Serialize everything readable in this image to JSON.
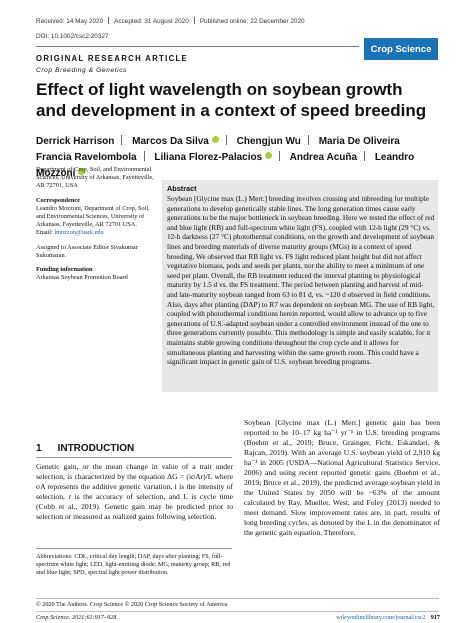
{
  "header": {
    "received": "Received: 14 May 2020",
    "accepted": "Accepted: 31 August 2020",
    "published": "Published online: 22 December 2020",
    "doi": "DOI: 10.1002/csc2.20327",
    "journal": "Crop Science"
  },
  "article_type": "ORIGINAL RESEARCH ARTICLE",
  "subsection": "Crop Breeding & Genetics",
  "title": "Effect of light wavelength on soybean growth and development in a context of speed breeding",
  "authors": [
    "Derrick Harrison",
    "Marcos Da Silva",
    "Chengjun Wu",
    "Maria De Oliveira",
    "Francia Ravelombola",
    "Liliana Florez-Palacios",
    "Andrea Acuña",
    "Leandro Mozzoni"
  ],
  "affiliation": {
    "dept": "Department of Crop, Soil, and Environmental Sciences, University of Arkansas, Fayetteville, AR 72701, USA",
    "corr_label": "Correspondence",
    "corr_text": "Leandro Mozzoni, Department of Crop, Soil, and Environmental Sciences, University of Arkansas, Fayetteville, AR 72701 USA.",
    "email_label": "Email: ",
    "email": "lmozzon@uark.edu",
    "editor": "Assigned to Associate Editor Sivakumar Sukumaran.",
    "funding_label": "Funding information",
    "funding": "Arkansas Soybean Promotion Board"
  },
  "abstract": {
    "heading": "Abstract",
    "text": "Soybean [Glycine max (L.) Merr.] breeding involves crossing and inbreeding for multiple generations to develop genetically stable lines. The long generation times cause early generations to be the major bottleneck in soybean breeding. Here we tested the effect of red and blue light (RB) and full-spectrum white light (FS), coupled with 12-h light (29 °C) vs. 12-h darkness (27 °C) photothermal conditions, on the growth and development of soybean lines and breeding materials of diverse maturity groups (MGs) in a context of speed breeding. We observed that RB light vs. FS light reduced plant height but did not affect vegetative biomass, pods and seeds per plants, nor the ability to meet a minimum of one seed per plant. Overall, the RB treatment reduced the interval planting to physiological maturity by 1.5 d vs. the FS treatment. The period between planting and harvest of mid- and late-maturity soybean ranged from 63 to 81 d, vs. ~120 d observed in field conditions. Also, days after planting (DAP) to R7 was dependent on soybean MG. The use of RB light, coupled with photothermal conditions herein reported, would allow to advance up to five generations of U.S.-adapted soybean under a controlled environment instead of the one to three generations currently possible. This methodology is simple and easily scalable, for it maintains stable growing conditions throughout the crop cycle and it allows for simultaneous planting and harvesting within the same growth room. This could have a significant impact in genetic gain of U.S. soybean breeding programs."
  },
  "intro": {
    "number": "1",
    "heading": "INTRODUCTION",
    "col1": "Genetic gain, or the mean change in value of a trait under selection, is characterized by the equation ΔG = (iσAr)/L where σA represents the additive genetic variation, i is the intensity of selection, r is the accuracy of selection, and L is cycle time (Cobb et al., 2019). Genetic gain may be predicted prior to selection or measured as realized gains following selection.",
    "col2": "Soybean [Glycine max (L.) Merr.] genetic gain has been reported to be 10–17 kg ha⁻¹ yr⁻¹ in U.S. breeding programs (Boehm et al., 2019; Bruce, Grainger, Ficht, Eskandari, & Rajcan, 2019). With an average U.S. soybean yield of 2,910 kg ha⁻¹ in 2005 (USDA—National Agricultural Statistics Service, 2006) and using recent reported genetic gains (Boehm et al., 2019; Bruce et al., 2019), the predicted average soybean yield in the United States by 2050 will be ~63% of the amount calculated by Ray, Mueller, West, and Foley (2013) needed to meet demand. Slow improvement rates are, in part, results of long breeding cycles, as denoted by the L in the denominator of the genetic gain equation. Therefore,"
  },
  "abbreviations": "Abbreviations: CDL, critical day length; DAP, days after planting; FS, full-spectrum white light; LED, light-emitting diode; MG, maturity group; RB, red and blue light; SPD, spectral light power distribution.",
  "copyright": "© 2020 The Authors. Crop Science © 2020 Crop Science Society of America",
  "footer": {
    "citation": "Crop Science. 2021;61:917–928.",
    "url": "wileyonlinelibrary.com/journal/csc2",
    "page": "917"
  }
}
